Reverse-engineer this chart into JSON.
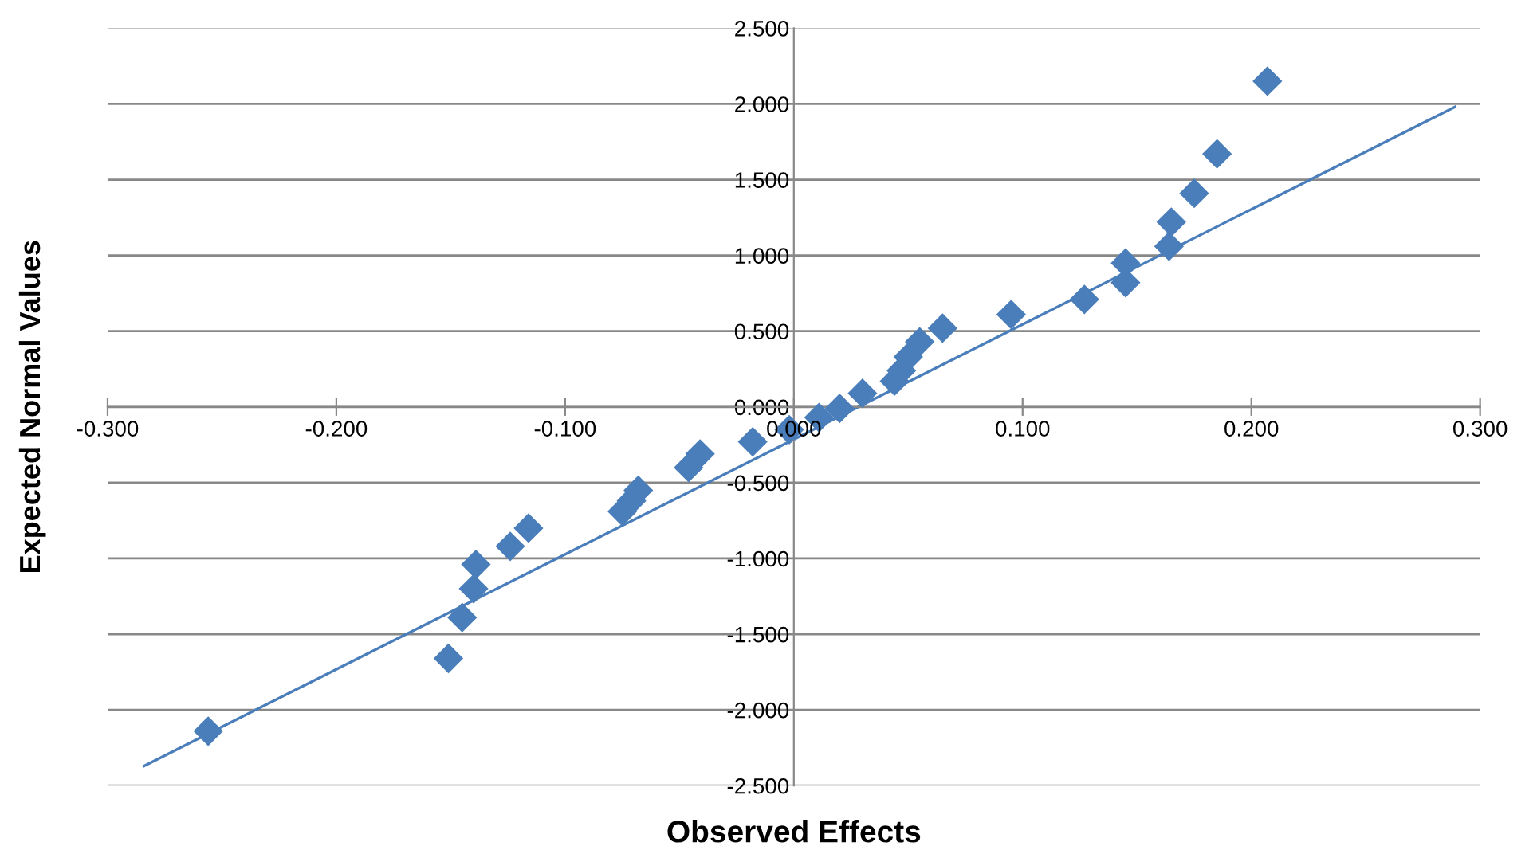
{
  "chart_data": {
    "type": "scatter",
    "xlabel": "Observed Effects",
    "ylabel": "Expected Normal Values",
    "marker": "diamond",
    "grid": "y",
    "legend": false,
    "xlim": [
      -0.3,
      0.3
    ],
    "ylim": [
      -2.5,
      2.5
    ],
    "xticks": [
      {
        "value": -0.3,
        "label": "-0.300"
      },
      {
        "value": -0.2,
        "label": "-0.200"
      },
      {
        "value": -0.1,
        "label": "-0.100"
      },
      {
        "value": 0,
        "label": "0.000"
      },
      {
        "value": 0.1,
        "label": "0.100"
      },
      {
        "value": 0.2,
        "label": "0.200"
      },
      {
        "value": 0.3,
        "label": "0.300"
      }
    ],
    "yticks": [
      {
        "value": -2.5,
        "label": "-2.500"
      },
      {
        "value": -2,
        "label": "-2.000"
      },
      {
        "value": -1.5,
        "label": "-1.500"
      },
      {
        "value": -1,
        "label": "-1.000"
      },
      {
        "value": -0.5,
        "label": "-0.500"
      },
      {
        "value": 0,
        "label": "0.000"
      },
      {
        "value": 0.5,
        "label": "0.500"
      },
      {
        "value": 1,
        "label": "1.000"
      },
      {
        "value": 1.5,
        "label": "1.500"
      },
      {
        "value": 2,
        "label": "2.000"
      },
      {
        "value": 2.5,
        "label": "2.500"
      }
    ],
    "series": [
      {
        "color": "#4a7ebb",
        "x": [
          -0.256,
          -0.151,
          -0.145,
          -0.14,
          -0.139,
          -0.124,
          -0.116,
          -0.075,
          -0.071,
          -0.068,
          -0.046,
          -0.041,
          -0.018,
          -0.002,
          0.011,
          0.02,
          0.03,
          0.044,
          0.047,
          0.05,
          0.055,
          0.065,
          0.095,
          0.127,
          0.145,
          0.145,
          0.164,
          0.165,
          0.175,
          0.185,
          0.207
        ],
        "values": [
          -2.14,
          -1.66,
          -1.39,
          -1.2,
          -1.04,
          -0.92,
          -0.8,
          -0.69,
          -0.62,
          -0.55,
          -0.4,
          -0.31,
          -0.23,
          -0.15,
          -0.07,
          -0.01,
          0.09,
          0.17,
          0.24,
          0.33,
          0.43,
          0.52,
          0.61,
          0.71,
          0.82,
          0.95,
          1.06,
          1.22,
          1.41,
          1.67,
          2.15
        ]
      },
      {
        "type": "line",
        "color": "#4a7ebb",
        "marker": "none",
        "x": [
          -0.284,
          0.289
        ],
        "values": [
          -2.37,
          1.98
        ]
      }
    ]
  }
}
